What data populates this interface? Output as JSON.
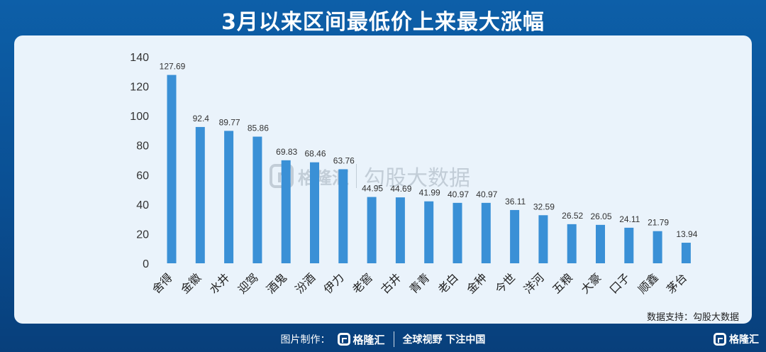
{
  "title": "3月以来区间最低价上来最大涨幅",
  "watermark": {
    "brand": "格隆汇",
    "partner": "勾股大数据"
  },
  "source_note": "数据支持：勾股大数据",
  "footer": {
    "made_by": "图片制作：",
    "brand": "格隆汇",
    "slogan": "全球视野 下注中国"
  },
  "corner_brand": "格隆汇",
  "chart_data": {
    "type": "bar",
    "title": "3月以来区间最低价上来最大涨幅",
    "xlabel": "",
    "ylabel": "",
    "ylim": [
      0,
      140
    ],
    "yticks": [
      0,
      20,
      40,
      60,
      80,
      100,
      120,
      140
    ],
    "grid": false,
    "bar_color": "#3a90d6",
    "categories": [
      "舍得",
      "金徽",
      "水井",
      "迎驾",
      "酒鬼",
      "汾酒",
      "伊力",
      "老窖",
      "古井",
      "青青",
      "老白",
      "金种",
      "今世",
      "洋河",
      "五粮",
      "大豪",
      "口子",
      "顺鑫",
      "茅台"
    ],
    "values": [
      127.69,
      92.4,
      89.77,
      85.86,
      69.83,
      68.46,
      63.76,
      44.95,
      44.69,
      41.99,
      40.97,
      40.97,
      36.11,
      32.59,
      26.52,
      26.05,
      24.11,
      21.79,
      13.94
    ],
    "data_labels": [
      "127.69",
      "92.4",
      "89.77",
      "85.86",
      "69.83",
      "68.46",
      "63.76",
      "44.95",
      "44.69",
      "41.99",
      "40.97",
      "40.97",
      "36.11",
      "32.59",
      "26.52",
      "26.05",
      "24.11",
      "21.79",
      "13.94"
    ]
  }
}
